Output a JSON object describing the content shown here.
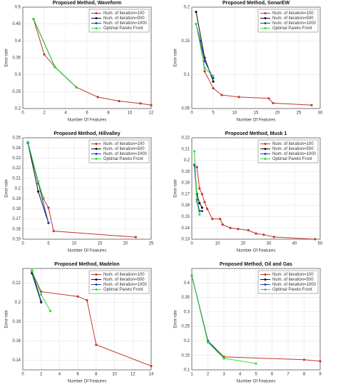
{
  "chart_data": [
    {
      "type": "line",
      "title": "Proposed Method, Waveform",
      "x_label": "Number Of Features",
      "y_label": "Error rate",
      "xlim": [
        0,
        12
      ],
      "xticks": [
        0,
        2,
        4,
        6,
        8,
        10,
        12
      ],
      "ylim": [
        0.2,
        0.5
      ],
      "yticks": [
        0.2,
        0.25,
        0.3,
        0.35,
        0.4,
        0.45,
        0.5
      ],
      "grid": true,
      "legend": "upper right",
      "series": [
        {
          "name": "Num. of iteration=100",
          "color": "#c0392b",
          "x": [
            1,
            2,
            3,
            5,
            7,
            9,
            11,
            12
          ],
          "values": [
            0.465,
            0.36,
            0.323,
            0.263,
            0.234,
            0.222,
            0.215,
            0.21
          ]
        },
        {
          "name": "Num. of iteration=500",
          "color": "#111111",
          "x": [
            1,
            3,
            5
          ],
          "values": [
            0.465,
            0.323,
            0.263
          ]
        },
        {
          "name": "Num. of iteration=1000",
          "color": "#2040c0",
          "x": [
            1,
            3,
            5
          ],
          "values": [
            0.465,
            0.323,
            0.263
          ]
        },
        {
          "name": "Optimal Pareto Front",
          "color": "#33dd33",
          "x": [
            1,
            3,
            5
          ],
          "values": [
            0.465,
            0.323,
            0.263
          ]
        }
      ]
    },
    {
      "type": "line",
      "title": "Proposed Method, SonarEW",
      "x_label": "Number Of Features",
      "y_label": "Error rate",
      "xlim": [
        0,
        30
      ],
      "xticks": [
        0,
        5,
        10,
        15,
        20,
        25,
        30
      ],
      "ylim": [
        0.05,
        0.2
      ],
      "yticks": [
        0.05,
        0.1,
        0.15,
        0.2
      ],
      "grid": true,
      "legend": "upper right",
      "series": [
        {
          "name": "Num. of iteration=100",
          "color": "#c0392b",
          "x": [
            1,
            2,
            3,
            5,
            7,
            11,
            18,
            19,
            28
          ],
          "values": [
            0.175,
            0.15,
            0.105,
            0.08,
            0.07,
            0.067,
            0.065,
            0.058,
            0.055
          ]
        },
        {
          "name": "Num. of iteration=500",
          "color": "#111111",
          "x": [
            1,
            3,
            5
          ],
          "values": [
            0.193,
            0.125,
            0.09
          ]
        },
        {
          "name": "Num. of iteration=1000",
          "color": "#2040c0",
          "x": [
            1,
            2,
            3,
            5
          ],
          "values": [
            0.175,
            0.15,
            0.12,
            0.095
          ]
        },
        {
          "name": "Optimal Pareto Front",
          "color": "#33dd33",
          "x": [
            1,
            3,
            5
          ],
          "values": [
            0.175,
            0.11,
            0.098
          ]
        }
      ]
    },
    {
      "type": "line",
      "title": "Proposed Method, Hillvalley",
      "x_label": "Number Of Features",
      "y_label": "Error rate",
      "xlim": [
        0,
        25
      ],
      "xticks": [
        0,
        5,
        10,
        15,
        20,
        25
      ],
      "ylim": [
        0.15,
        0.25
      ],
      "yticks": [
        0.15,
        0.16,
        0.17,
        0.18,
        0.19,
        0.2,
        0.21,
        0.22,
        0.23,
        0.24,
        0.25
      ],
      "grid": true,
      "legend": "upper right",
      "series": [
        {
          "name": "Num. of iteration=100",
          "color": "#c0392b",
          "x": [
            1,
            3,
            4,
            5,
            6,
            22
          ],
          "values": [
            0.245,
            0.205,
            0.19,
            0.181,
            0.158,
            0.152
          ]
        },
        {
          "name": "Num. of iteration=500",
          "color": "#111111",
          "x": [
            1,
            3,
            5
          ],
          "values": [
            0.245,
            0.197,
            0.166
          ]
        },
        {
          "name": "Num. of iteration=1000",
          "color": "#2040c0",
          "x": [
            1,
            5
          ],
          "values": [
            0.245,
            0.166
          ]
        },
        {
          "name": "Optimal Pareto Front",
          "color": "#33dd33",
          "x": [
            1,
            3,
            4
          ],
          "values": [
            0.246,
            0.207,
            0.191
          ]
        }
      ]
    },
    {
      "type": "line",
      "title": "Proposed Method, Musk 1",
      "x_label": "Number Of Features",
      "y_label": "Error rate",
      "xlim": [
        0,
        50
      ],
      "xticks": [
        0,
        10,
        20,
        30,
        40,
        50
      ],
      "ylim": [
        0.13,
        0.22
      ],
      "yticks": [
        0.13,
        0.14,
        0.15,
        0.16,
        0.17,
        0.18,
        0.19,
        0.2,
        0.21,
        0.22
      ],
      "grid": true,
      "legend": "upper right",
      "series": [
        {
          "name": "Num. of iteration=100",
          "color": "#c0392b",
          "x": [
            1,
            2,
            3,
            4,
            5,
            6,
            8,
            11,
            12,
            15,
            18,
            22,
            25,
            28,
            32,
            48
          ],
          "values": [
            0.196,
            0.194,
            0.175,
            0.17,
            0.163,
            0.157,
            0.148,
            0.148,
            0.143,
            0.14,
            0.139,
            0.138,
            0.135,
            0.134,
            0.132,
            0.13
          ]
        },
        {
          "name": "Num. of iteration=500",
          "color": "#111111",
          "x": [
            1,
            2,
            3,
            4
          ],
          "values": [
            0.196,
            0.17,
            0.162,
            0.158
          ]
        },
        {
          "name": "Num. of iteration=1000",
          "color": "#2040c0",
          "x": [
            1,
            2,
            3,
            4
          ],
          "values": [
            0.196,
            0.165,
            0.155,
            0.155
          ]
        },
        {
          "name": "Optimal Pareto Front",
          "color": "#33dd33",
          "x": [
            1,
            2,
            3
          ],
          "values": [
            0.208,
            0.163,
            0.152
          ]
        }
      ]
    },
    {
      "type": "line",
      "title": "Proposed Method, Madelon",
      "x_label": "Number Of Features",
      "y_label": "Error rate",
      "xlim": [
        0,
        14
      ],
      "xticks": [
        0,
        2,
        4,
        6,
        8,
        10,
        12,
        14
      ],
      "ylim": [
        0.13,
        0.235
      ],
      "yticks": [
        0.14,
        0.16,
        0.18,
        0.2,
        0.22
      ],
      "grid": true,
      "legend": "upper right",
      "series": [
        {
          "name": "Num. of iteration=100",
          "color": "#c0392b",
          "x": [
            1,
            2,
            6,
            7,
            8,
            14
          ],
          "values": [
            0.232,
            0.211,
            0.206,
            0.202,
            0.156,
            0.134
          ]
        },
        {
          "name": "Num. of iteration=500",
          "color": "#111111",
          "x": [
            1,
            2
          ],
          "values": [
            0.23,
            0.2
          ]
        },
        {
          "name": "Num. of iteration=1000",
          "color": "#2040c0",
          "x": [
            1,
            2
          ],
          "values": [
            0.233,
            0.201
          ]
        },
        {
          "name": "Optimal Pareto Front",
          "color": "#33dd33",
          "x": [
            1,
            2,
            3
          ],
          "values": [
            0.233,
            0.208,
            0.191
          ]
        }
      ]
    },
    {
      "type": "line",
      "title": "Proposed Method, Oil and Gas",
      "x_label": "Number Of Features",
      "y_label": "Error rate",
      "xlim": [
        1,
        9
      ],
      "xticks": [
        1,
        2,
        3,
        4,
        5,
        6,
        7,
        8,
        9
      ],
      "ylim": [
        0.1,
        0.45
      ],
      "yticks": [
        0.1,
        0.15,
        0.2,
        0.25,
        0.3,
        0.35,
        0.4
      ],
      "grid": true,
      "legend": "upper right",
      "series": [
        {
          "name": "Num. of iteration=100",
          "color": "#c0392b",
          "x": [
            1,
            2,
            3,
            8,
            9
          ],
          "values": [
            0.425,
            0.2,
            0.145,
            0.135,
            0.13
          ]
        },
        {
          "name": "Num. of iteration=500",
          "color": "#111111",
          "x": [
            1,
            2,
            3
          ],
          "values": [
            0.425,
            0.2,
            0.14
          ]
        },
        {
          "name": "Num. of iteration=1000",
          "color": "#2040c0",
          "x": [
            1,
            2,
            3
          ],
          "values": [
            0.425,
            0.2,
            0.14
          ]
        },
        {
          "name": "Optimal Pareto Front",
          "color": "#33dd33",
          "x": [
            1,
            2,
            3,
            5
          ],
          "values": [
            0.425,
            0.195,
            0.14,
            0.122
          ]
        }
      ]
    }
  ]
}
